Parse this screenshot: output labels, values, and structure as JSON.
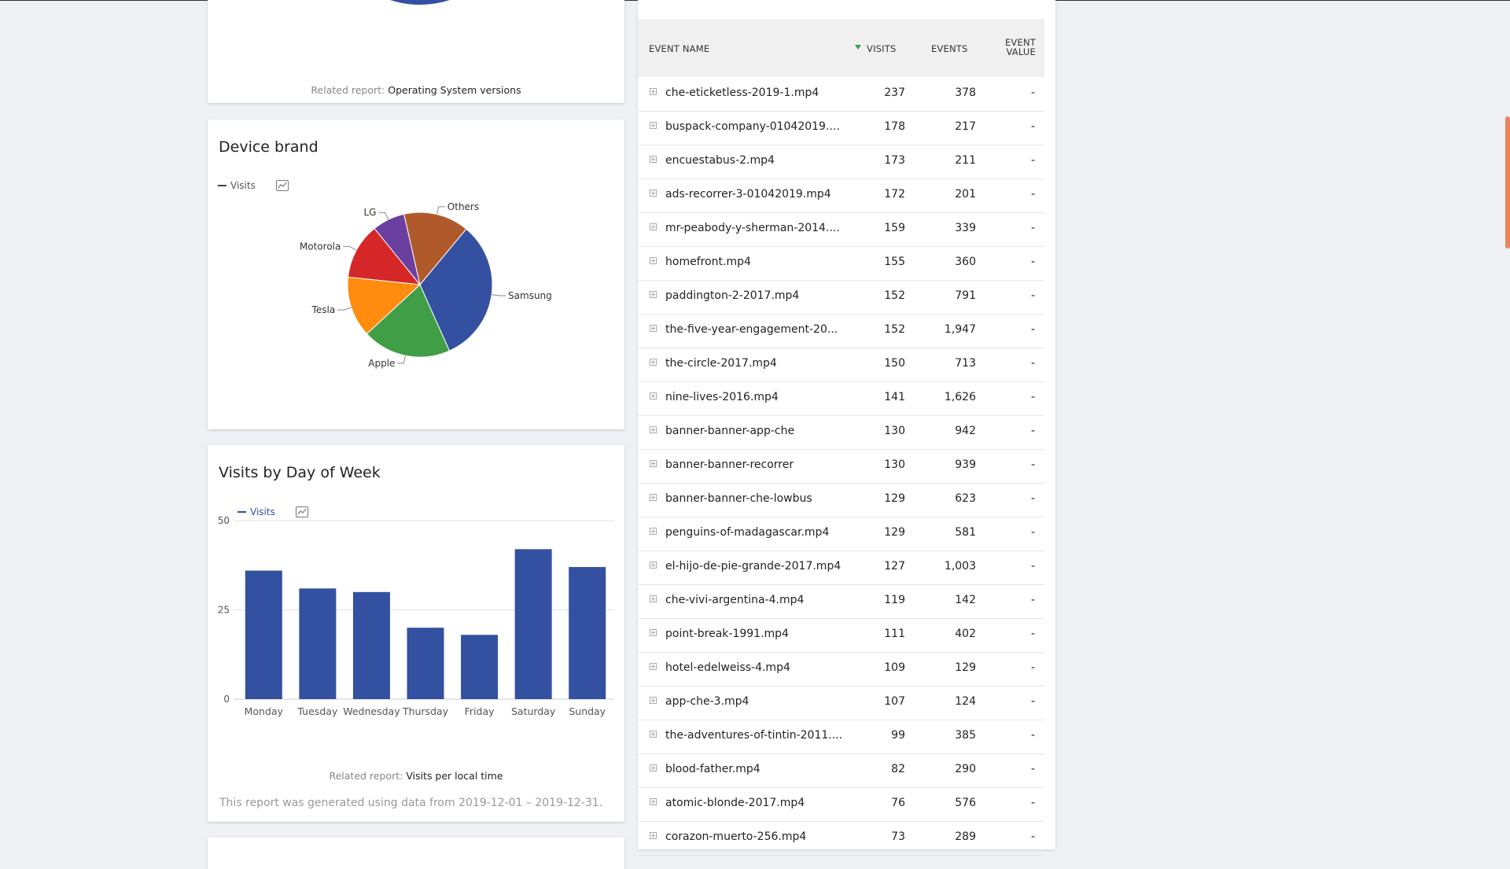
{
  "os_card": {
    "related_prefix": "Related report:",
    "related_link": "Operating System versions"
  },
  "device_brand": {
    "title": "Device brand",
    "legend": "Visits",
    "chart_data": {
      "type": "pie",
      "series": "Visits",
      "slices": [
        {
          "label": "Motorola",
          "value": 12,
          "color": "#d62728"
        },
        {
          "label": "LG",
          "value": 7,
          "color": "#6b3fa0"
        },
        {
          "label": "Others",
          "value": 14,
          "color": "#b05a2c"
        },
        {
          "label": "Samsung",
          "value": 31,
          "color": "#3450a1"
        },
        {
          "label": "Apple",
          "value": 19,
          "color": "#3f9e46"
        },
        {
          "label": "Tesla",
          "value": 13,
          "color": "#ff8b0f"
        }
      ]
    }
  },
  "visits_dow": {
    "title": "Visits by Day of Week",
    "legend": "Visits",
    "related_prefix": "Related report:",
    "related_link": "Visits per local time",
    "footer": "This report was generated using data from 2019-12-01 – 2019-12-31.",
    "chart_data": {
      "type": "bar",
      "categories": [
        "Monday",
        "Tuesday",
        "Wednesday",
        "Thursday",
        "Friday",
        "Saturday",
        "Sunday"
      ],
      "series": [
        {
          "name": "Visits",
          "values": [
            36,
            31,
            30,
            20,
            18,
            42,
            37
          ]
        }
      ],
      "yticks": [
        0,
        25,
        50
      ],
      "ylim": [
        0,
        50
      ],
      "color": "#3450a1",
      "grid": true
    }
  },
  "events_table": {
    "columns": {
      "name": "EVENT NAME",
      "visits": "VISITS",
      "events": "EVENTS",
      "value_line1": "EVENT",
      "value_line2": "VALUE"
    },
    "sort_color": "#3f9e46",
    "rows": [
      {
        "name": "che-eticketless-2019-1.mp4",
        "visits": "237",
        "events": "378",
        "value": "-"
      },
      {
        "name": "buspack-company-01042019....",
        "visits": "178",
        "events": "217",
        "value": "-"
      },
      {
        "name": "encuestabus-2.mp4",
        "visits": "173",
        "events": "211",
        "value": "-"
      },
      {
        "name": "ads-recorrer-3-01042019.mp4",
        "visits": "172",
        "events": "201",
        "value": "-"
      },
      {
        "name": "mr-peabody-y-sherman-2014....",
        "visits": "159",
        "events": "339",
        "value": "-"
      },
      {
        "name": "homefront.mp4",
        "visits": "155",
        "events": "360",
        "value": "-"
      },
      {
        "name": "paddington-2-2017.mp4",
        "visits": "152",
        "events": "791",
        "value": "-"
      },
      {
        "name": "the-five-year-engagement-20...",
        "visits": "152",
        "events": "1,947",
        "value": "-"
      },
      {
        "name": "the-circle-2017.mp4",
        "visits": "150",
        "events": "713",
        "value": "-"
      },
      {
        "name": "nine-lives-2016.mp4",
        "visits": "141",
        "events": "1,626",
        "value": "-"
      },
      {
        "name": "banner-banner-app-che",
        "visits": "130",
        "events": "942",
        "value": "-"
      },
      {
        "name": "banner-banner-recorrer",
        "visits": "130",
        "events": "939",
        "value": "-"
      },
      {
        "name": "banner-banner-che-lowbus",
        "visits": "129",
        "events": "623",
        "value": "-"
      },
      {
        "name": "penguins-of-madagascar.mp4",
        "visits": "129",
        "events": "581",
        "value": "-"
      },
      {
        "name": "el-hijo-de-pie-grande-2017.mp4",
        "visits": "127",
        "events": "1,003",
        "value": "-"
      },
      {
        "name": "che-vivi-argentina-4.mp4",
        "visits": "119",
        "events": "142",
        "value": "-"
      },
      {
        "name": "point-break-1991.mp4",
        "visits": "111",
        "events": "402",
        "value": "-"
      },
      {
        "name": "hotel-edelweiss-4.mp4",
        "visits": "109",
        "events": "129",
        "value": "-"
      },
      {
        "name": "app-che-3.mp4",
        "visits": "107",
        "events": "124",
        "value": "-"
      },
      {
        "name": "the-adventures-of-tintin-2011....",
        "visits": "99",
        "events": "385",
        "value": "-"
      },
      {
        "name": "blood-father.mp4",
        "visits": "82",
        "events": "290",
        "value": "-"
      },
      {
        "name": "atomic-blonde-2017.mp4",
        "visits": "76",
        "events": "576",
        "value": "-"
      },
      {
        "name": "corazon-muerto-256.mp4",
        "visits": "73",
        "events": "289",
        "value": "-"
      }
    ]
  }
}
